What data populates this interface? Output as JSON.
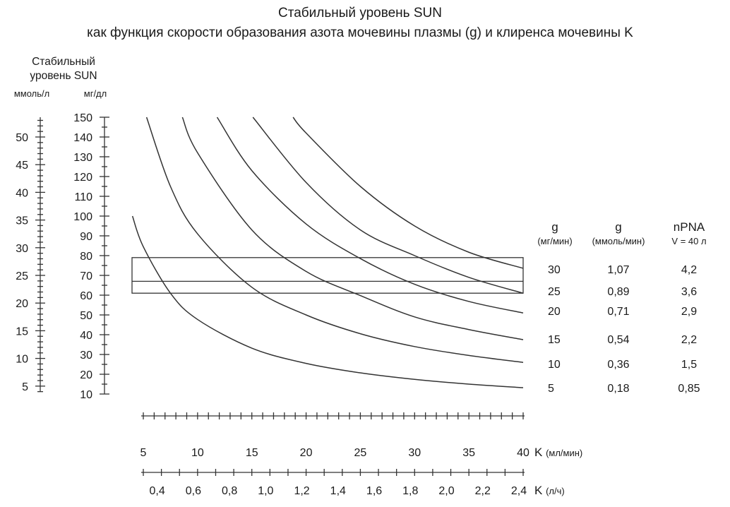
{
  "chart_data": {
    "type": "line",
    "title": "Стабильный уровень SUN",
    "subtitle": "как функция скорости образования азота мочевины плазмы (g) и клиренса мочевины K",
    "ylabel": {
      "line1": "Стабильный",
      "line2": "уровень SUN",
      "unit_left": "ммоль/л",
      "unit_right": "мг/дл"
    },
    "y_mgdl": {
      "range": [
        10,
        150
      ],
      "ticks": [
        150,
        140,
        130,
        120,
        110,
        100,
        90,
        80,
        70,
        60,
        50,
        40,
        30,
        20,
        10
      ],
      "minor_step": 5
    },
    "y_mmol": {
      "ticks": [
        50,
        45,
        40,
        35,
        30,
        25,
        20,
        15,
        10,
        5
      ],
      "minor_step": 1,
      "mgdl_per_mmol": 2.8
    },
    "x_ml_min": {
      "label": "K",
      "unit": "(мл/мин)",
      "range": [
        5,
        40
      ],
      "ticks": [
        5,
        10,
        15,
        20,
        25,
        30,
        35,
        40
      ],
      "minor_step": 1
    },
    "x_l_h": {
      "label": "K",
      "unit": "(л/ч)",
      "ticks": [
        "0,4",
        "0,6",
        "0,8",
        "1,0",
        "1,2",
        "1,4",
        "1,6",
        "1,8",
        "2,0",
        "2,2",
        "2,4"
      ],
      "tick_values": [
        0.4,
        0.6,
        0.8,
        1.0,
        1.2,
        1.4,
        1.6,
        1.8,
        2.0,
        2.2,
        2.4
      ],
      "minor_step": 0.1
    },
    "grid": false,
    "target_band_mgdl": {
      "low": 61,
      "high": 79,
      "line": 67
    },
    "series": [
      {
        "g_mg_min": 5,
        "points": [
          [
            4,
            100
          ],
          [
            5,
            84.5
          ],
          [
            7.5,
            61
          ],
          [
            10,
            47.7
          ],
          [
            15,
            33.2
          ],
          [
            20,
            25.5
          ],
          [
            25,
            20.7
          ],
          [
            30,
            17.4
          ],
          [
            35,
            15
          ],
          [
            40,
            13.2
          ]
        ]
      },
      {
        "g_mg_min": 10,
        "points": [
          [
            5.3,
            150
          ],
          [
            7.5,
            115
          ],
          [
            10,
            91
          ],
          [
            15,
            64
          ],
          [
            20,
            50
          ],
          [
            25,
            40.5
          ],
          [
            30,
            34
          ],
          [
            35,
            29.5
          ],
          [
            40,
            26
          ]
        ]
      },
      {
        "g_mg_min": 15,
        "points": [
          [
            8.6,
            150
          ],
          [
            10,
            132
          ],
          [
            15,
            93
          ],
          [
            20,
            72
          ],
          [
            25,
            59.8
          ],
          [
            30,
            49
          ],
          [
            35,
            42.6
          ],
          [
            40,
            37.5
          ]
        ]
      },
      {
        "g_mg_min": 20,
        "points": [
          [
            11.8,
            150
          ],
          [
            15,
            123
          ],
          [
            20,
            96
          ],
          [
            25,
            78.5
          ],
          [
            30,
            65.5
          ],
          [
            35,
            56.8
          ],
          [
            40,
            51
          ]
        ]
      },
      {
        "g_mg_min": 25,
        "points": [
          [
            15.1,
            150
          ],
          [
            20,
            117
          ],
          [
            25,
            93
          ],
          [
            30,
            80
          ],
          [
            35,
            69
          ],
          [
            40,
            61
          ]
        ]
      },
      {
        "g_mg_min": 30,
        "points": [
          [
            18.8,
            150
          ],
          [
            20,
            142
          ],
          [
            25,
            115
          ],
          [
            30,
            95
          ],
          [
            35,
            81.7
          ],
          [
            40,
            73.6
          ]
        ]
      }
    ],
    "legend_table": {
      "headers": [
        {
          "top": "g",
          "bottom": "(мг/мин)"
        },
        {
          "top": "g",
          "bottom": "(ммоль/мин)"
        },
        {
          "top": "nPNA",
          "bottom": "V = 40 л"
        }
      ],
      "rows": [
        [
          "30",
          "1,07",
          "4,2"
        ],
        [
          "25",
          "0,89",
          "3,6"
        ],
        [
          "20",
          "0,71",
          "2,9"
        ],
        [
          "15",
          "0,54",
          "2,2"
        ],
        [
          "10",
          "0,36",
          "1,5"
        ],
        [
          "5",
          "0,18",
          "0,85"
        ]
      ]
    }
  }
}
